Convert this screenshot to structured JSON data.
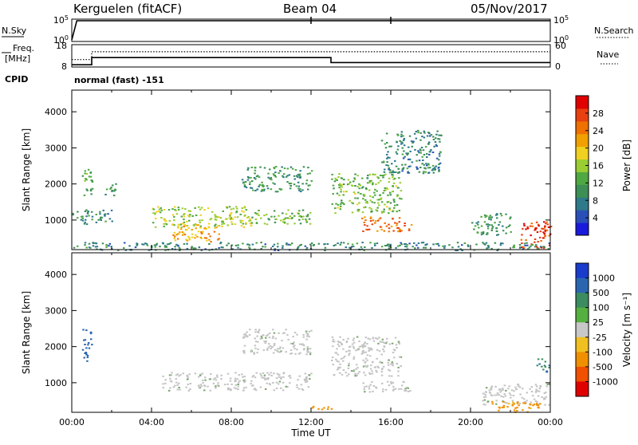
{
  "header": {
    "station": "Kerguelen (fitACF)",
    "beam": "Beam 04",
    "date": "05/Nov/2017"
  },
  "strip_labels": {
    "nsky": "N.Sky",
    "nsearch": "N.Search",
    "freq_line1": "Freq.",
    "freq_line2": "[MHz]",
    "nave": "Nave",
    "cpid": "CPID",
    "cpid_value": "normal (fast) -151"
  },
  "strip_ticks": {
    "noise_left": [
      "10^5",
      "10^0"
    ],
    "noise_right": [
      "10^5",
      "10^0"
    ],
    "freq_left": [
      "18",
      "8"
    ],
    "nave_right": [
      "60",
      "0"
    ]
  },
  "chart_data": [
    {
      "type": "line",
      "panel": "noise",
      "series": [
        {
          "name": "N.Sky",
          "x": [
            "00:00",
            "00:15",
            "04:00",
            "08:00",
            "12:00",
            "16:00",
            "20:00",
            "24:00"
          ],
          "values": [
            1.0,
            100000,
            100000,
            100000,
            100000,
            100000,
            100000,
            100000
          ]
        },
        {
          "name": "N.Search",
          "x": [
            "00:00",
            "24:00"
          ],
          "values": [
            100000,
            100000
          ]
        }
      ],
      "ylim": [
        1,
        100000
      ],
      "ylog": true
    },
    {
      "type": "line",
      "panel": "frequency-nave",
      "series": [
        {
          "name": "Freq.",
          "x": [
            "00:00",
            "01:00",
            "01:00",
            "13:00",
            "13:00",
            "24:00"
          ],
          "values": [
            9.0,
            9.0,
            12.2,
            12.2,
            10.0,
            10.0
          ]
        },
        {
          "name": "Nave",
          "x": [
            "00:00",
            "01:00",
            "01:00",
            "13:00",
            "13:00",
            "24:00"
          ],
          "values": [
            20,
            20,
            41,
            41,
            41,
            41
          ]
        }
      ],
      "ylim_left": [
        8,
        18
      ],
      "ylim_right": [
        0,
        60
      ]
    },
    {
      "type": "heatmap",
      "panel": "power",
      "ylabel": "Slant Range [km]",
      "ylim": [
        180,
        4600
      ],
      "yticks": [
        1000,
        2000,
        3000,
        4000
      ],
      "xlim": [
        "00:00",
        "24:00"
      ],
      "colorbar": {
        "label": "Power [dB]",
        "ticks": [
          4,
          8,
          12,
          16,
          20,
          24,
          28
        ],
        "range": [
          0,
          32
        ]
      },
      "regions": [
        {
          "t": [
            0.5,
            1.0
          ],
          "r": [
            1600,
            2500
          ],
          "level": 12
        },
        {
          "t": [
            1.6,
            2.2
          ],
          "r": [
            1700,
            2100
          ],
          "level": 10
        },
        {
          "t": [
            0.0,
            2.0
          ],
          "r": [
            900,
            1300
          ],
          "level": 8
        },
        {
          "t": [
            4.0,
            9.0
          ],
          "r": [
            800,
            1400
          ],
          "level": 16
        },
        {
          "t": [
            5.0,
            7.5
          ],
          "r": [
            400,
            900
          ],
          "level": 22
        },
        {
          "t": [
            9.0,
            12.0
          ],
          "r": [
            900,
            1300
          ],
          "level": 14
        },
        {
          "t": [
            8.5,
            12.0
          ],
          "r": [
            1800,
            2500
          ],
          "level": 10
        },
        {
          "t": [
            13.0,
            16.5
          ],
          "r": [
            1200,
            2300
          ],
          "level": 14
        },
        {
          "t": [
            14.5,
            17.0
          ],
          "r": [
            700,
            1100
          ],
          "level": 26
        },
        {
          "t": [
            15.5,
            18.5
          ],
          "r": [
            2300,
            3500
          ],
          "level": 8
        },
        {
          "t": [
            20.0,
            22.0
          ],
          "r": [
            600,
            1200
          ],
          "level": 10
        },
        {
          "t": [
            22.5,
            24.0
          ],
          "r": [
            200,
            1000
          ],
          "level": 30
        },
        {
          "t": [
            0.0,
            24.0
          ],
          "r": [
            180,
            400
          ],
          "level": 8
        }
      ]
    },
    {
      "type": "heatmap",
      "panel": "velocity",
      "ylabel": "Slant Range [km]",
      "xlabel": "Time UT",
      "ylim": [
        180,
        4600
      ],
      "yticks": [
        1000,
        2000,
        3000,
        4000
      ],
      "xlim": [
        "00:00",
        "24:00"
      ],
      "xticks": [
        "00:00",
        "04:00",
        "08:00",
        "12:00",
        "16:00",
        "20:00",
        "00:00"
      ],
      "colorbar": {
        "label": "Velocity [m s^-1]",
        "ticks": [
          1000,
          500,
          100,
          25,
          -25,
          -100,
          -500,
          -1000
        ]
      },
      "regions": [
        {
          "t": [
            0.5,
            1.0
          ],
          "r": [
            1600,
            2500
          ],
          "level": 500
        },
        {
          "t": [
            4.5,
            12.0
          ],
          "r": [
            800,
            1300
          ],
          "level": 0
        },
        {
          "t": [
            8.5,
            12.0
          ],
          "r": [
            1800,
            2500
          ],
          "level": 0
        },
        {
          "t": [
            13.0,
            16.5
          ],
          "r": [
            1200,
            2300
          ],
          "level": 0
        },
        {
          "t": [
            14.5,
            17.0
          ],
          "r": [
            750,
            1050
          ],
          "level": 0
        },
        {
          "t": [
            12.0,
            13.0
          ],
          "r": [
            250,
            400
          ],
          "level": -150
        },
        {
          "t": [
            20.5,
            24.0
          ],
          "r": [
            400,
            1000
          ],
          "level": 0
        },
        {
          "t": [
            21.0,
            23.5
          ],
          "r": [
            200,
            500
          ],
          "level": -150
        },
        {
          "t": [
            23.3,
            24.0
          ],
          "r": [
            1300,
            1700
          ],
          "level": 300
        }
      ]
    }
  ],
  "power_colors": [
    "#1a1adc",
    "#2a50b8",
    "#2f7a8a",
    "#3d8f55",
    "#4fa841",
    "#9acd32",
    "#f0d020",
    "#f0a000",
    "#f07000",
    "#e84010",
    "#e00000"
  ],
  "velocity_colors": [
    "#1a3ccc",
    "#2a66b0",
    "#3b8c60",
    "#56b040",
    "#c8c8c8",
    "#f0c020",
    "#f09000",
    "#f05000",
    "#e00000"
  ]
}
